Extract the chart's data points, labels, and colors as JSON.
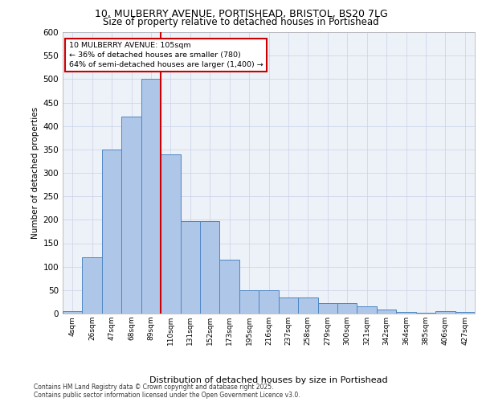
{
  "title_line1": "10, MULBERRY AVENUE, PORTISHEAD, BRISTOL, BS20 7LG",
  "title_line2": "Size of property relative to detached houses in Portishead",
  "xlabel": "Distribution of detached houses by size in Portishead",
  "ylabel": "Number of detached properties",
  "footnote": "Contains HM Land Registry data © Crown copyright and database right 2025.\nContains public sector information licensed under the Open Government Licence v3.0.",
  "bin_labels": [
    "4sqm",
    "26sqm",
    "47sqm",
    "68sqm",
    "89sqm",
    "110sqm",
    "131sqm",
    "152sqm",
    "173sqm",
    "195sqm",
    "216sqm",
    "237sqm",
    "258sqm",
    "279sqm",
    "300sqm",
    "321sqm",
    "342sqm",
    "364sqm",
    "385sqm",
    "406sqm",
    "427sqm"
  ],
  "bar_values": [
    5,
    120,
    350,
    420,
    500,
    340,
    197,
    197,
    115,
    50,
    50,
    35,
    35,
    22,
    22,
    15,
    9,
    4,
    2,
    5,
    3
  ],
  "ylim_max": 600,
  "ytick_step": 50,
  "bar_color": "#aec6e8",
  "bar_edge_color": "#4d86c4",
  "grid_color": "#c8d0e8",
  "bg_color": "#edf1f8",
  "vline_color": "#cc0000",
  "vline_x_index": 4.5,
  "annotation_text": "10 MULBERRY AVENUE: 105sqm\n← 36% of detached houses are smaller (780)\n64% of semi-detached houses are larger (1,400) →",
  "annotation_box_edgecolor": "#cc0000",
  "title1_fontsize": 9.0,
  "title2_fontsize": 8.5,
  "ylabel_fontsize": 7.5,
  "xlabel_fontsize": 8.0,
  "ytick_fontsize": 7.5,
  "xtick_fontsize": 6.5,
  "annot_fontsize": 6.8,
  "footnote_fontsize": 5.5
}
